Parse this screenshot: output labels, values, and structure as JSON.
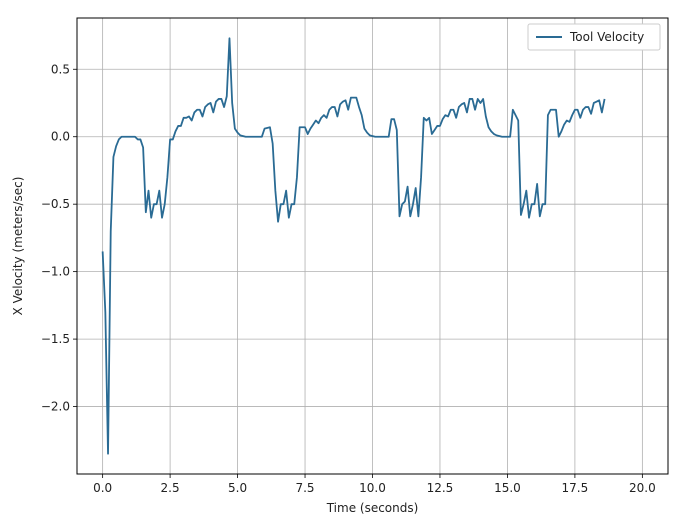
{
  "chart_data": {
    "type": "line",
    "title": "",
    "xlabel": "Time (seconds)",
    "ylabel": "X Velocity (meters/sec)",
    "xlim": [
      -0.95,
      20.95
    ],
    "ylim": [
      -2.5,
      0.88
    ],
    "grid": true,
    "legend": {
      "placement": "top-right"
    },
    "xticks": [
      0.0,
      2.5,
      5.0,
      7.5,
      10.0,
      12.5,
      15.0,
      17.5,
      20.0
    ],
    "xtick_labels": [
      "0.0",
      "2.5",
      "5.0",
      "7.5",
      "10.0",
      "12.5",
      "15.0",
      "17.5",
      "20.0"
    ],
    "yticks": [
      0.5,
      0.0,
      -0.5,
      -1.0,
      -1.5,
      -2.0
    ],
    "ytick_labels": [
      "0.5",
      "0.0",
      "−0.5",
      "−1.0",
      "−1.5",
      "−2.0"
    ],
    "series": [
      {
        "name": "Tool Velocity",
        "color": "#2a6b94",
        "points": [
          [
            0.0,
            -0.85
          ],
          [
            0.1,
            -1.3
          ],
          [
            0.2,
            -2.35
          ],
          [
            0.3,
            -0.7
          ],
          [
            0.4,
            -0.15
          ],
          [
            0.5,
            -0.07
          ],
          [
            0.6,
            -0.02
          ],
          [
            0.7,
            0.0
          ],
          [
            0.8,
            0.0
          ],
          [
            0.9,
            0.0
          ],
          [
            1.0,
            0.0
          ],
          [
            1.1,
            0.0
          ],
          [
            1.2,
            0.0
          ],
          [
            1.3,
            -0.02
          ],
          [
            1.4,
            -0.02
          ],
          [
            1.5,
            -0.08
          ],
          [
            1.6,
            -0.56
          ],
          [
            1.7,
            -0.4
          ],
          [
            1.8,
            -0.6
          ],
          [
            1.9,
            -0.5
          ],
          [
            2.0,
            -0.5
          ],
          [
            2.1,
            -0.4
          ],
          [
            2.2,
            -0.6
          ],
          [
            2.3,
            -0.5
          ],
          [
            2.4,
            -0.3
          ],
          [
            2.5,
            -0.02
          ],
          [
            2.6,
            -0.02
          ],
          [
            2.7,
            0.04
          ],
          [
            2.8,
            0.08
          ],
          [
            2.9,
            0.08
          ],
          [
            3.0,
            0.14
          ],
          [
            3.1,
            0.14
          ],
          [
            3.2,
            0.15
          ],
          [
            3.3,
            0.12
          ],
          [
            3.4,
            0.18
          ],
          [
            3.5,
            0.2
          ],
          [
            3.6,
            0.2
          ],
          [
            3.7,
            0.15
          ],
          [
            3.8,
            0.22
          ],
          [
            3.9,
            0.24
          ],
          [
            4.0,
            0.25
          ],
          [
            4.1,
            0.18
          ],
          [
            4.2,
            0.26
          ],
          [
            4.3,
            0.28
          ],
          [
            4.4,
            0.28
          ],
          [
            4.5,
            0.22
          ],
          [
            4.6,
            0.3
          ],
          [
            4.7,
            0.73
          ],
          [
            4.8,
            0.25
          ],
          [
            4.9,
            0.06
          ],
          [
            5.0,
            0.03
          ],
          [
            5.1,
            0.01
          ],
          [
            5.3,
            0.0
          ],
          [
            5.6,
            0.0
          ],
          [
            5.9,
            0.0
          ],
          [
            6.0,
            0.06
          ],
          [
            6.2,
            0.07
          ],
          [
            6.3,
            -0.05
          ],
          [
            6.4,
            -0.4
          ],
          [
            6.5,
            -0.63
          ],
          [
            6.6,
            -0.5
          ],
          [
            6.7,
            -0.5
          ],
          [
            6.8,
            -0.4
          ],
          [
            6.9,
            -0.6
          ],
          [
            7.0,
            -0.5
          ],
          [
            7.1,
            -0.5
          ],
          [
            7.2,
            -0.3
          ],
          [
            7.3,
            0.07
          ],
          [
            7.4,
            0.07
          ],
          [
            7.5,
            0.07
          ],
          [
            7.6,
            0.02
          ],
          [
            7.7,
            0.06
          ],
          [
            7.8,
            0.09
          ],
          [
            7.9,
            0.12
          ],
          [
            8.0,
            0.1
          ],
          [
            8.1,
            0.14
          ],
          [
            8.2,
            0.16
          ],
          [
            8.3,
            0.14
          ],
          [
            8.4,
            0.2
          ],
          [
            8.5,
            0.22
          ],
          [
            8.6,
            0.22
          ],
          [
            8.7,
            0.15
          ],
          [
            8.8,
            0.24
          ],
          [
            8.9,
            0.26
          ],
          [
            9.0,
            0.27
          ],
          [
            9.1,
            0.2
          ],
          [
            9.2,
            0.29
          ],
          [
            9.3,
            0.29
          ],
          [
            9.4,
            0.29
          ],
          [
            9.5,
            0.22
          ],
          [
            9.6,
            0.16
          ],
          [
            9.7,
            0.06
          ],
          [
            9.8,
            0.03
          ],
          [
            9.9,
            0.01
          ],
          [
            10.1,
            0.0
          ],
          [
            10.4,
            0.0
          ],
          [
            10.6,
            0.0
          ],
          [
            10.7,
            0.13
          ],
          [
            10.8,
            0.13
          ],
          [
            10.9,
            0.05
          ],
          [
            11.0,
            -0.59
          ],
          [
            11.1,
            -0.5
          ],
          [
            11.2,
            -0.48
          ],
          [
            11.3,
            -0.37
          ],
          [
            11.4,
            -0.59
          ],
          [
            11.5,
            -0.5
          ],
          [
            11.6,
            -0.38
          ],
          [
            11.7,
            -0.59
          ],
          [
            11.8,
            -0.3
          ],
          [
            11.9,
            0.14
          ],
          [
            12.0,
            0.12
          ],
          [
            12.1,
            0.14
          ],
          [
            12.2,
            0.02
          ],
          [
            12.3,
            0.05
          ],
          [
            12.4,
            0.08
          ],
          [
            12.5,
            0.08
          ],
          [
            12.6,
            0.13
          ],
          [
            12.7,
            0.16
          ],
          [
            12.8,
            0.15
          ],
          [
            12.9,
            0.2
          ],
          [
            13.0,
            0.2
          ],
          [
            13.1,
            0.14
          ],
          [
            13.2,
            0.22
          ],
          [
            13.3,
            0.24
          ],
          [
            13.4,
            0.25
          ],
          [
            13.5,
            0.18
          ],
          [
            13.6,
            0.28
          ],
          [
            13.7,
            0.28
          ],
          [
            13.8,
            0.2
          ],
          [
            13.9,
            0.28
          ],
          [
            14.0,
            0.25
          ],
          [
            14.1,
            0.28
          ],
          [
            14.2,
            0.15
          ],
          [
            14.3,
            0.07
          ],
          [
            14.4,
            0.04
          ],
          [
            14.5,
            0.02
          ],
          [
            14.6,
            0.01
          ],
          [
            14.8,
            0.0
          ],
          [
            15.0,
            0.0
          ],
          [
            15.1,
            0.0
          ],
          [
            15.2,
            0.2
          ],
          [
            15.3,
            0.16
          ],
          [
            15.4,
            0.12
          ],
          [
            15.5,
            -0.58
          ],
          [
            15.6,
            -0.5
          ],
          [
            15.7,
            -0.4
          ],
          [
            15.8,
            -0.6
          ],
          [
            15.9,
            -0.5
          ],
          [
            16.0,
            -0.5
          ],
          [
            16.1,
            -0.35
          ],
          [
            16.2,
            -0.59
          ],
          [
            16.3,
            -0.5
          ],
          [
            16.4,
            -0.5
          ],
          [
            16.5,
            0.16
          ],
          [
            16.6,
            0.2
          ],
          [
            16.7,
            0.2
          ],
          [
            16.8,
            0.2
          ],
          [
            16.9,
            0.0
          ],
          [
            17.0,
            0.04
          ],
          [
            17.1,
            0.09
          ],
          [
            17.2,
            0.12
          ],
          [
            17.3,
            0.11
          ],
          [
            17.4,
            0.16
          ],
          [
            17.5,
            0.2
          ],
          [
            17.6,
            0.2
          ],
          [
            17.7,
            0.14
          ],
          [
            17.8,
            0.2
          ],
          [
            17.9,
            0.22
          ],
          [
            18.0,
            0.22
          ],
          [
            18.1,
            0.17
          ],
          [
            18.2,
            0.25
          ],
          [
            18.3,
            0.26
          ],
          [
            18.4,
            0.27
          ],
          [
            18.5,
            0.18
          ],
          [
            18.6,
            0.28
          ]
        ]
      }
    ]
  }
}
